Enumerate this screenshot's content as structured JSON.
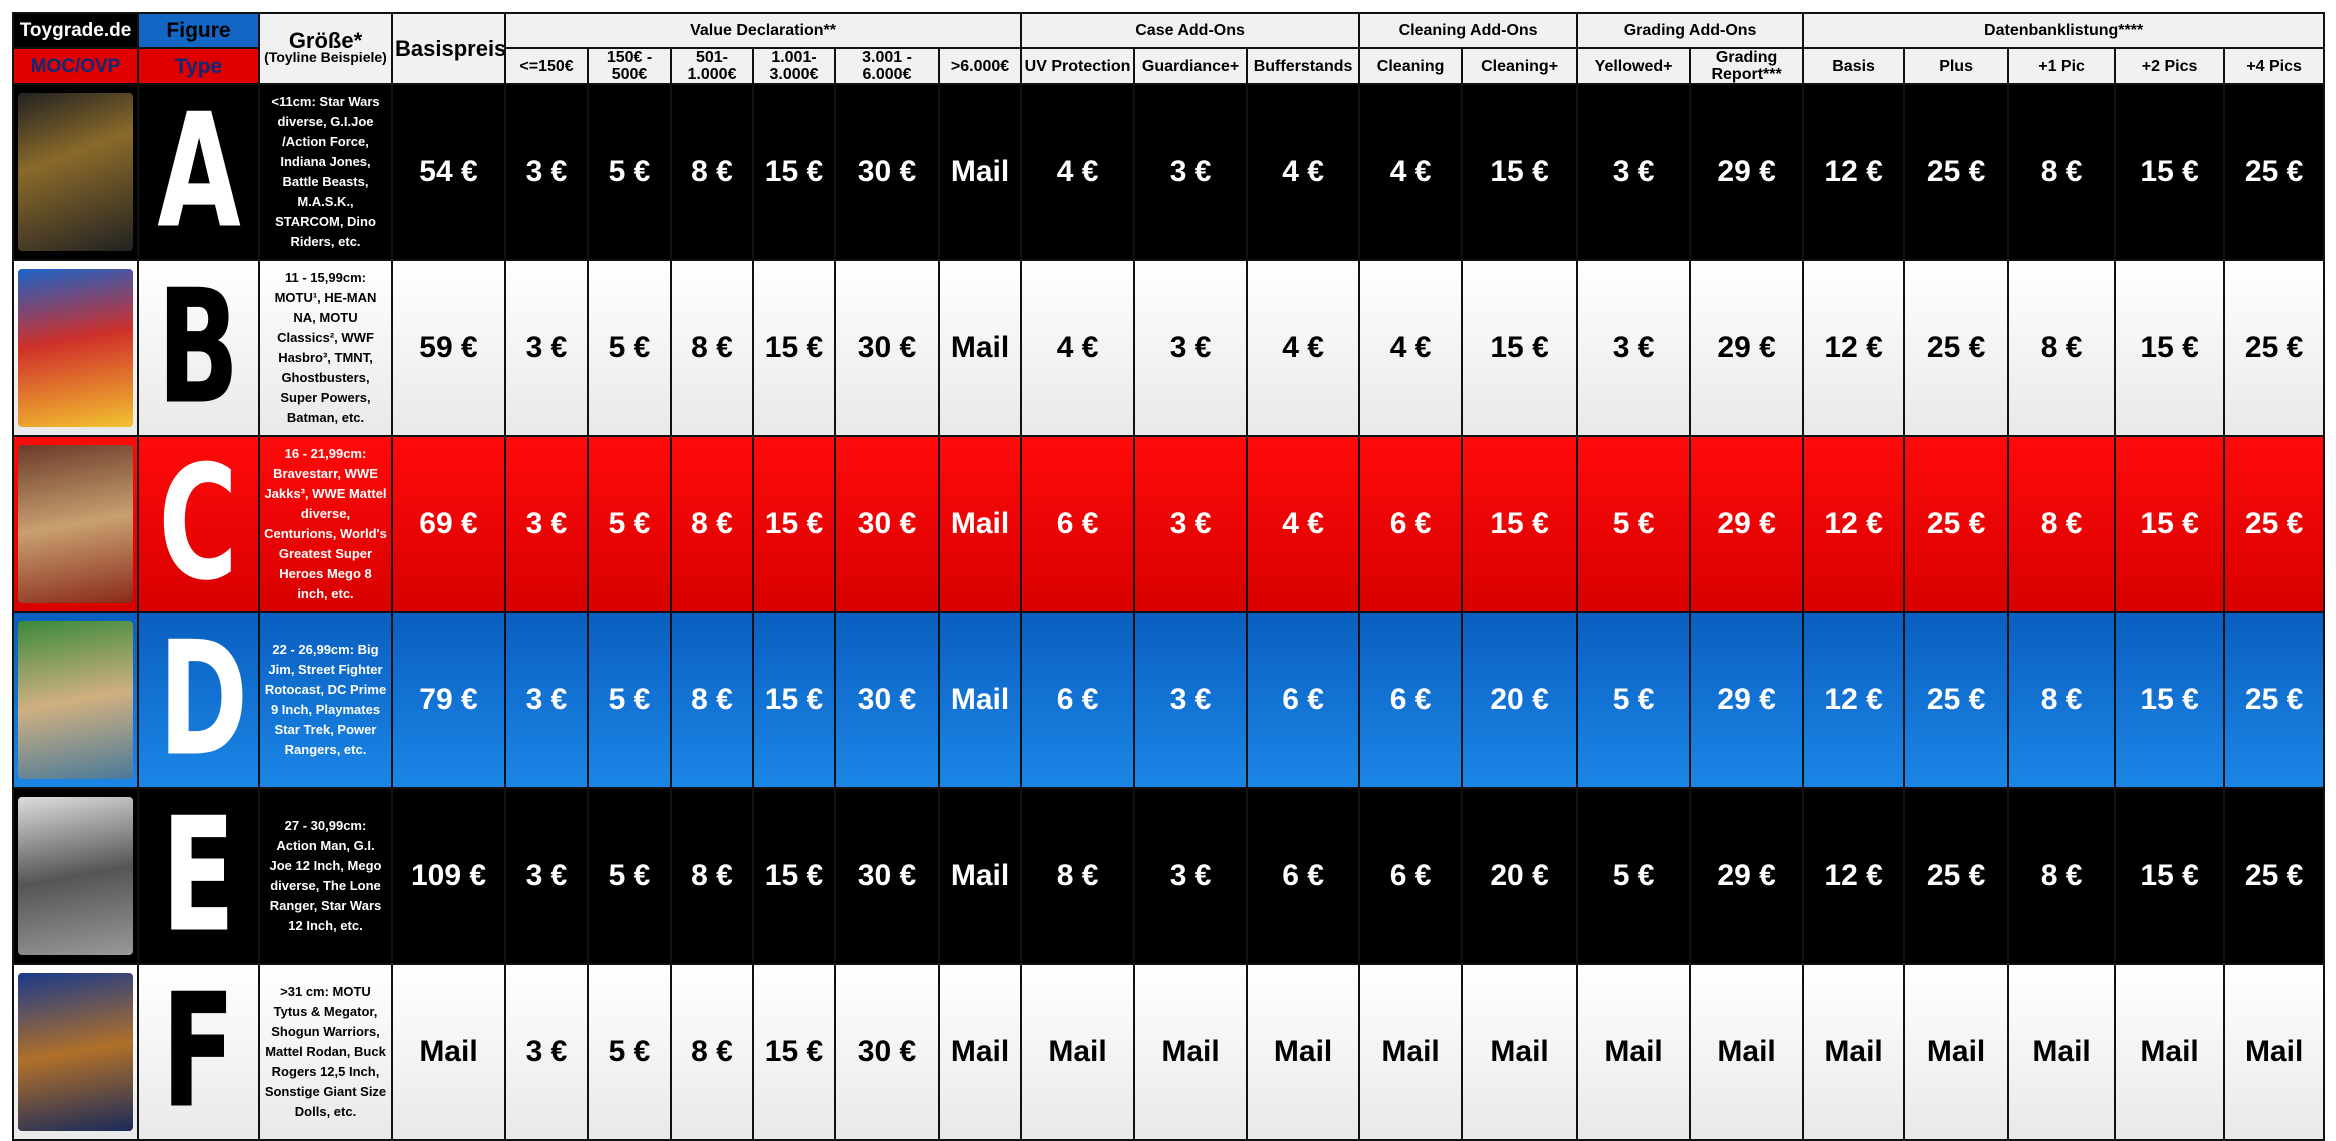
{
  "header": {
    "brand": "Toygrade.de",
    "moc": "MOC/OVP",
    "figure": "Figure",
    "type": "Type",
    "size_title": "Größe*",
    "size_sub": "(Toyline Beispiele)",
    "base": "Basispreis",
    "groups": [
      {
        "label": "Value Declaration**",
        "columns": [
          "<=150€",
          "150€ - 500€",
          "501-1.000€",
          "1.001-3.000€",
          "3.001 - 6.000€",
          ">6.000€"
        ]
      },
      {
        "label": "Case Add-Ons",
        "columns": [
          "UV Protection",
          "Guardiance+",
          "Bufferstands"
        ]
      },
      {
        "label": "Cleaning Add-Ons",
        "columns": [
          "Cleaning",
          "Cleaning+"
        ]
      },
      {
        "label": "Grading Add-Ons",
        "columns": [
          "Yellowed+",
          "Grading Report***"
        ]
      },
      {
        "label": "Datenbanklistung****",
        "columns": [
          "Basis",
          "Plus",
          "+1 Pic",
          "+2 Pics",
          "+4 Pics"
        ]
      }
    ]
  },
  "rows": [
    {
      "type": "A",
      "size": "<11cm: Star Wars diverse, G.I.Joe /Action Force, Indiana Jones, Battle Beasts, M.A.S.K., STARCOM, Dino Riders, etc.",
      "base": "54 €",
      "values": [
        "3 €",
        "5 €",
        "8 €",
        "15 €",
        "30 €",
        "Mail",
        "4 €",
        "3 €",
        "4 €",
        "4 €",
        "15 €",
        "3 €",
        "29 €",
        "12 €",
        "25 €",
        "8 €",
        "15 €",
        "25 €"
      ]
    },
    {
      "type": "B",
      "size": "11 - 15,99cm: MOTU¹, HE-MAN NA, MOTU Classics², WWF Hasbro³, TMNT, Ghostbusters, Super Powers, Batman, etc.",
      "base": "59 €",
      "values": [
        "3 €",
        "5 €",
        "8 €",
        "15 €",
        "30 €",
        "Mail",
        "4 €",
        "3 €",
        "4 €",
        "4 €",
        "15 €",
        "3 €",
        "29 €",
        "12 €",
        "25 €",
        "8 €",
        "15 €",
        "25 €"
      ]
    },
    {
      "type": "C",
      "size": "16 - 21,99cm: Bravestarr, WWE Jakks³, WWE Mattel diverse, Centurions, World's Greatest Super Heroes Mego 8 inch, etc.",
      "base": "69 €",
      "values": [
        "3 €",
        "5 €",
        "8 €",
        "15 €",
        "30 €",
        "Mail",
        "6 €",
        "3 €",
        "4 €",
        "6 €",
        "15 €",
        "5 €",
        "29 €",
        "12 €",
        "25 €",
        "8 €",
        "15 €",
        "25 €"
      ]
    },
    {
      "type": "D",
      "size": "22 - 26,99cm: Big Jim, Street Fighter Rotocast, DC Prime 9 Inch, Playmates Star Trek, Power Rangers, etc.",
      "base": "79 €",
      "values": [
        "3 €",
        "5 €",
        "8 €",
        "15 €",
        "30 €",
        "Mail",
        "6 €",
        "3 €",
        "6 €",
        "6 €",
        "20 €",
        "5 €",
        "29 €",
        "12 €",
        "25 €",
        "8 €",
        "15 €",
        "25 €"
      ]
    },
    {
      "type": "E",
      "size": "27 - 30,99cm: Action Man, G.I. Joe 12 Inch, Mego diverse, The Lone Ranger,  Star Wars 12 Inch, etc.",
      "base": "109 €",
      "values": [
        "3 €",
        "5 €",
        "8 €",
        "15 €",
        "30 €",
        "Mail",
        "8 €",
        "3 €",
        "6 €",
        "6 €",
        "20 €",
        "5 €",
        "29 €",
        "12 €",
        "25 €",
        "8 €",
        "15 €",
        "25 €"
      ]
    },
    {
      "type": "F",
      "size": ">31 cm: MOTU Tytus & Megator, Shogun Warriors, Mattel Rodan, Buck Rogers 12,5 Inch, Sonstige Giant Size Dolls, etc.",
      "base": "Mail",
      "values": [
        "3 €",
        "5 €",
        "8 €",
        "15 €",
        "30 €",
        "Mail",
        "Mail",
        "Mail",
        "Mail",
        "Mail",
        "Mail",
        "Mail",
        "Mail",
        "Mail",
        "Mail",
        "Mail",
        "Mail",
        "Mail"
      ]
    }
  ]
}
